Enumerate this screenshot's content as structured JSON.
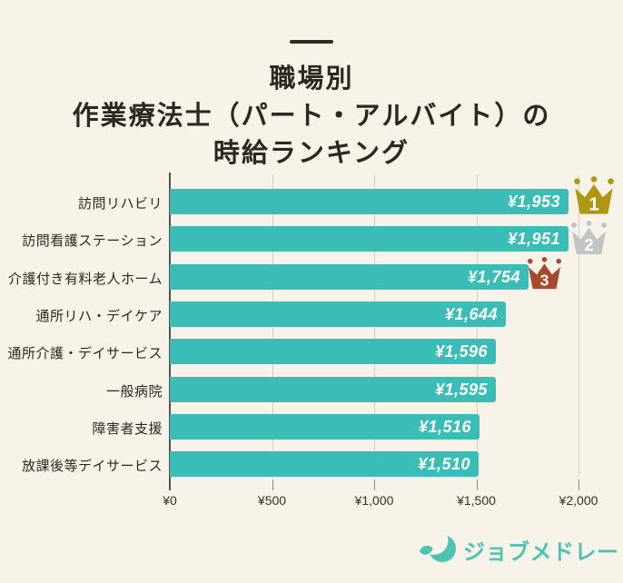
{
  "meta": {
    "background_color": "#F7F3E9",
    "text_color": "#2B2823"
  },
  "header": {
    "title_lines": [
      "職場別",
      "作業療法士（パート・アルバイト）の",
      "時給ランキング"
    ]
  },
  "chart_data": {
    "type": "bar",
    "orientation": "horizontal",
    "title": "職場別 作業療法士（パート・アルバイト）の時給ランキング",
    "categories": [
      "訪問リハビリ",
      "訪問看護ステーション",
      "介護付き有料老人ホーム",
      "通所リハ・デイケア",
      "通所介護・デイサービス",
      "一般病院",
      "障害者支援",
      "放課後等デイサービス"
    ],
    "values": [
      1953,
      1951,
      1754,
      1644,
      1596,
      1595,
      1516,
      1510
    ],
    "value_labels": [
      "¥1,953",
      "¥1,951",
      "¥1,754",
      "¥1,644",
      "¥1,596",
      "¥1,595",
      "¥1,516",
      "¥1,510"
    ],
    "xlim": [
      0,
      2000
    ],
    "x_tick_values": [
      0,
      500,
      1000,
      1500,
      2000
    ],
    "x_tick_labels": [
      "¥0",
      "¥500",
      "¥1,000",
      "¥1,500",
      "¥2,000"
    ],
    "grid": true,
    "legend": false,
    "bar_color": "#3BBDB7",
    "ranks": [
      {
        "row": 0,
        "label": "1",
        "color": "#AF9714"
      },
      {
        "row": 1,
        "label": "2",
        "color": "#C3C3C3"
      },
      {
        "row": 2,
        "label": "3",
        "color": "#A7492D"
      }
    ]
  },
  "footer": {
    "brand_name": "ジョブメドレー",
    "brand_color": "#4FC3B2"
  }
}
